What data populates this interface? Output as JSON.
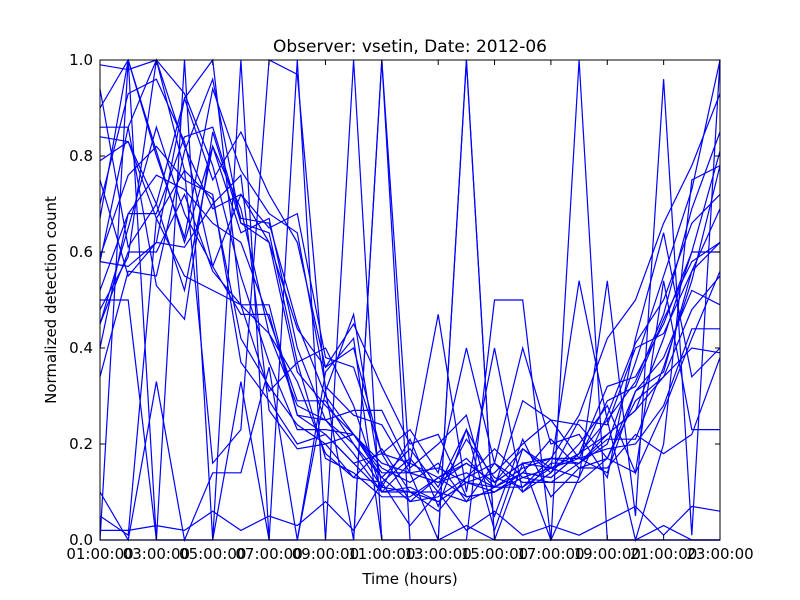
{
  "chart_data": {
    "type": "line",
    "title": "Observer: vsetin, Date: 2012-06",
    "xlabel": "Time (hours)",
    "ylabel": "Normalized detection count",
    "x": [
      "01:00:00",
      "02:00:00",
      "03:00:00",
      "04:00:00",
      "05:00:00",
      "06:00:00",
      "07:00:00",
      "08:00:00",
      "09:00:00",
      "10:00:00",
      "11:00:00",
      "12:00:00",
      "13:00:00",
      "14:00:00",
      "15:00:00",
      "16:00:00",
      "17:00:00",
      "18:00:00",
      "19:00:00",
      "20:00:00",
      "21:00:00",
      "22:00:00",
      "23:00:00"
    ],
    "xticks": [
      "01:00:00",
      "03:00:00",
      "05:00:00",
      "07:00:00",
      "09:00:00",
      "11:00:00",
      "13:00:00",
      "15:00:00",
      "17:00:00",
      "19:00:00",
      "21:00:00",
      "23:00:00"
    ],
    "yticks": [
      "0.0",
      "0.2",
      "0.4",
      "0.6",
      "0.8",
      "1.0"
    ],
    "ylim": [
      0,
      1.0
    ],
    "grid": false,
    "color": "#0000ff",
    "series": [
      {
        "values": [
          0.58,
          0.86,
          1.0,
          0.77,
          0.71,
          0.42,
          0.32,
          0.24,
          0.2,
          0.13,
          0.12,
          0.17,
          0.1,
          0.21,
          0.13,
          0.11,
          0.17,
          0.16,
          0.2,
          0.37,
          0.55,
          0.73,
          1.0
        ]
      },
      {
        "values": [
          0.48,
          0.59,
          1.0,
          0.93,
          0.78,
          0.55,
          0.37,
          0.23,
          0.23,
          0.22,
          0.13,
          0.08,
          0.13,
          0.17,
          0.11,
          0.11,
          0.15,
          0.17,
          0.29,
          0.32,
          0.46,
          0.58,
          0.62
        ]
      },
      {
        "values": [
          0.34,
          0.56,
          0.55,
          0.81,
          0.96,
          0.66,
          0.62,
          0.44,
          0.36,
          0.45,
          0.32,
          0.2,
          0.22,
          0.09,
          0.1,
          0.14,
          0.21,
          0.15,
          0.17,
          0.14,
          0.27,
          0.42,
          0.56
        ]
      },
      {
        "values": [
          0.79,
          0.83,
          0.7,
          0.92,
          1.0,
          0.49,
          0.49,
          0.26,
          0.25,
          0.18,
          0.1,
          0.16,
          0.13,
          0.16,
          0.12,
          0.16,
          0.17,
          0.26,
          0.42,
          0.5,
          0.66,
          0.78,
          0.93
        ]
      },
      {
        "values": [
          0.67,
          1.0,
          0.81,
          0.62,
          0.82,
          0.69,
          0.43,
          0.33,
          0.18,
          0.13,
          0.19,
          0.1,
          0.06,
          0.13,
          0.19,
          0.13,
          0.12,
          0.16,
          0.21,
          0.21,
          0.36,
          0.54,
          0.78
        ]
      },
      {
        "values": [
          0.52,
          0.68,
          0.76,
          0.73,
          0.66,
          0.62,
          0.46,
          0.29,
          0.29,
          0.2,
          0.13,
          0.19,
          0.11,
          0.23,
          0.12,
          0.19,
          0.14,
          0.25,
          0.24,
          0.4,
          0.43,
          0.56,
          0.69
        ]
      },
      {
        "values": [
          0.45,
          0.6,
          0.6,
          0.72,
          0.56,
          0.49,
          0.43,
          0.28,
          0.25,
          0.2,
          0.11,
          0.1,
          0.08,
          0.12,
          0.11,
          0.29,
          0.25,
          0.17,
          0.14,
          0.31,
          0.38,
          0.52,
          0.49
        ]
      },
      {
        "values": [
          0.84,
          0.83,
          0.67,
          0.55,
          0.52,
          0.49,
          0.31,
          0.37,
          0.4,
          0.28,
          0.1,
          0.11,
          0.08,
          0.12,
          0.14,
          0.2,
          0.25,
          0.24,
          0.17,
          0.31,
          0.35,
          0.56,
          0.62
        ]
      },
      {
        "values": [
          0.7,
          0.93,
          0.96,
          0.83,
          0.57,
          0.47,
          0.47,
          0.26,
          0.22,
          0.16,
          0.18,
          0.08,
          0.09,
          0.13,
          0.16,
          0.1,
          0.16,
          0.16,
          0.22,
          0.27,
          0.42,
          0.6,
          0.6
        ]
      },
      {
        "values": [
          0.59,
          0.76,
          0.82,
          0.75,
          0.72,
          0.37,
          0.29,
          0.2,
          0.22,
          0.16,
          0.1,
          0.1,
          0.1,
          0.08,
          0.11,
          0.15,
          0.17,
          0.17,
          0.19,
          0.2,
          0.28,
          0.44,
          0.44
        ]
      },
      {
        "values": [
          0.86,
          0.86,
          0.53,
          0.46,
          0.85,
          0.66,
          0.64,
          0.37,
          0.17,
          0.14,
          0.09,
          0.09,
          0.13,
          0.09,
          0.1,
          0.14,
          0.13,
          0.18,
          0.25,
          0.33,
          0.47,
          0.69,
          0.85
        ]
      },
      {
        "values": [
          0.99,
          0.98,
          1.0,
          0.82,
          0.69,
          0.72,
          0.62,
          0.35,
          0.28,
          0.22,
          0.16,
          0.14,
          0.12,
          0.14,
          0.11,
          0.14,
          0.13,
          0.18,
          0.32,
          0.34,
          0.45,
          0.6,
          0.81
        ]
      },
      {
        "values": [
          0.02,
          0.02,
          0.03,
          0.02,
          0.06,
          0.02,
          0.05,
          0.03,
          0.08,
          0.02,
          0.12,
          0.03,
          0.1,
          0.02,
          0.06,
          0.01,
          0.03,
          0.01,
          0.04,
          0.07,
          0.01,
          0.07,
          0.06
        ]
      },
      {
        "values": [
          0.1,
          0.0,
          0.33,
          0.0,
          0.14,
          0.14,
          0.36,
          0.0,
          0.31,
          0.0,
          1.0,
          0.14,
          0.0,
          1.0,
          0.0,
          0.16,
          0.0,
          0.13,
          0.54,
          0.05,
          0.96,
          0.01,
          1.0
        ]
      },
      {
        "values": [
          0.0,
          0.0,
          0.0,
          0.0,
          0.0,
          0.33,
          0.0,
          0.0,
          0.35,
          0.42,
          0.0,
          0.0,
          0.0,
          0.03,
          0.0,
          0.0,
          0.0,
          0.0,
          0.0,
          0.0,
          0.03,
          0.0,
          0.0
        ]
      },
      {
        "values": [
          0.5,
          0.5,
          0.0,
          0.0,
          0.0,
          0.0,
          0.0,
          0.0,
          0.0,
          1.0,
          0.0,
          0.0,
          0.0,
          0.0,
          0.5,
          0.5,
          0.0,
          0.0,
          0.0,
          0.0,
          0.0,
          0.0,
          0.0
        ]
      },
      {
        "values": [
          0.0,
          1.0,
          0.0,
          1.0,
          0.0,
          1.0,
          0.0,
          1.0,
          0.0,
          0.0,
          1.0,
          0.0,
          0.0,
          1.0,
          0.0,
          0.0,
          0.0,
          1.0,
          0.0,
          0.0,
          0.0,
          0.0,
          0.0
        ]
      },
      {
        "values": [
          0.75,
          0.55,
          0.62,
          0.92,
          0.75,
          0.85,
          0.72,
          0.62,
          0.36,
          0.4,
          0.18,
          0.16,
          0.47,
          0.1,
          0.4,
          0.1,
          0.14,
          0.2,
          0.28,
          0.14,
          0.54,
          0.23,
          0.23
        ]
      },
      {
        "values": [
          0.45,
          0.65,
          0.86,
          0.68,
          0.57,
          0.72,
          0.65,
          0.68,
          0.38,
          0.36,
          0.18,
          0.23,
          0.14,
          0.4,
          0.16,
          0.4,
          0.2,
          0.22,
          0.13,
          0.42,
          0.64,
          0.34,
          0.4
        ]
      },
      {
        "values": [
          0.94,
          0.61,
          0.7,
          0.52,
          0.82,
          0.64,
          0.67,
          0.4,
          0.25,
          0.27,
          0.27,
          0.15,
          0.2,
          0.26,
          0.05,
          0.21,
          0.09,
          0.15,
          0.15,
          0.22,
          0.18,
          0.22,
          0.38
        ]
      },
      {
        "values": [
          0.58,
          0.57,
          0.62,
          0.61,
          0.7,
          0.76,
          0.27,
          0.19,
          0.2,
          0.22,
          0.14,
          0.14,
          0.15,
          0.12,
          0.1,
          0.13,
          0.15,
          0.18,
          0.22,
          0.27,
          0.34,
          0.4,
          0.39
        ]
      },
      {
        "values": [
          0.05,
          0.01,
          0.67,
          0.77,
          0.16,
          0.23,
          1.0,
          0.97,
          0.31,
          0.47,
          0.11,
          0.21,
          0.07,
          0.23,
          0.02,
          0.19,
          0.15,
          0.54,
          0.25,
          0.0,
          0.2,
          0.75,
          0.78
        ]
      },
      {
        "values": [
          0.9,
          1.0,
          0.8,
          0.63,
          0.94,
          0.77,
          0.68,
          0.64,
          0.32,
          0.26,
          0.24,
          0.14,
          0.12,
          0.16,
          0.12,
          0.16,
          0.15,
          0.13,
          0.26,
          0.41,
          0.5,
          0.66,
          0.72
        ]
      },
      {
        "values": [
          0.4,
          0.68,
          0.68,
          0.84,
          0.86,
          0.67,
          0.66,
          0.45,
          0.3,
          0.22,
          0.15,
          0.12,
          0.16,
          0.08,
          0.16,
          0.12,
          0.12,
          0.12,
          0.17,
          0.29,
          0.34,
          0.48,
          0.55
        ]
      }
    ]
  }
}
